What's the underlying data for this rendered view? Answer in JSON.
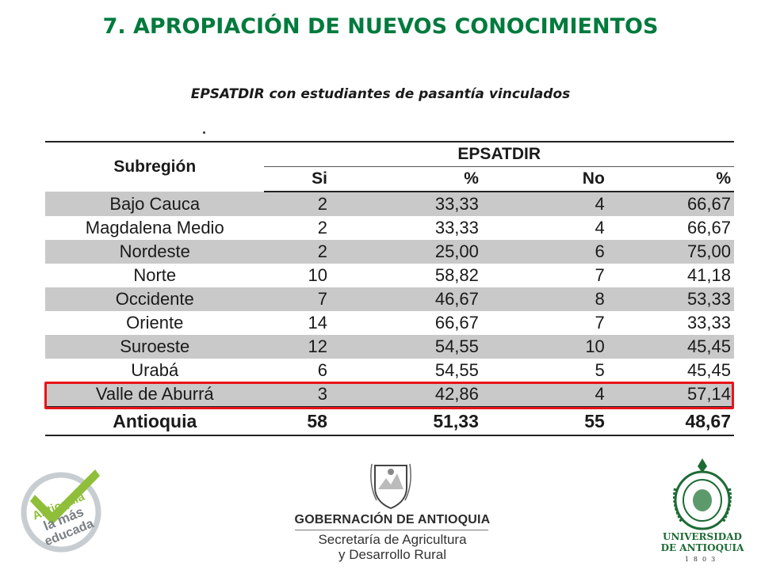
{
  "title": "7. APROPIACIÓN DE NUEVOS CONOCIMIENTOS",
  "subtitle": "EPSATDIR con estudiantes de pasantía vinculados",
  "table": {
    "row_header": "Subregión",
    "group_header": "EPSATDIR",
    "columns": [
      "Si",
      "%",
      "No",
      "%"
    ],
    "rows": [
      {
        "name": "Bajo Cauca",
        "si": "2",
        "pct_si": "33,33",
        "no": "4",
        "pct_no": "66,67"
      },
      {
        "name": "Magdalena Medio",
        "si": "2",
        "pct_si": "33,33",
        "no": "4",
        "pct_no": "66,67"
      },
      {
        "name": "Nordeste",
        "si": "2",
        "pct_si": "25,00",
        "no": "6",
        "pct_no": "75,00"
      },
      {
        "name": "Norte",
        "si": "10",
        "pct_si": "58,82",
        "no": "7",
        "pct_no": "41,18"
      },
      {
        "name": "Occidente",
        "si": "7",
        "pct_si": "46,67",
        "no": "8",
        "pct_no": "53,33"
      },
      {
        "name": "Oriente",
        "si": "14",
        "pct_si": "66,67",
        "no": "7",
        "pct_no": "33,33"
      },
      {
        "name": "Suroeste",
        "si": "12",
        "pct_si": "54,55",
        "no": "10",
        "pct_no": "45,45"
      },
      {
        "name": "Urabá",
        "si": "6",
        "pct_si": "54,55",
        "no": "5",
        "pct_no": "45,45"
      },
      {
        "name": "Valle de Aburrá",
        "si": "3",
        "pct_si": "42,86",
        "no": "4",
        "pct_no": "57,14"
      }
    ],
    "total": {
      "name": "Antioquia",
      "si": "58",
      "pct_si": "51,33",
      "no": "55",
      "pct_no": "48,67"
    },
    "highlighted_row": "Valle de Aburrá"
  },
  "logos": {
    "left": {
      "text": [
        "Antioquia",
        "la más",
        "educada"
      ],
      "color": "#8fbf3a"
    },
    "center": {
      "name": "GOBERNACIÓN DE ANTIOQUIA",
      "line1": "Secretaría de Agricultura",
      "line2": "y Desarrollo Rural"
    },
    "right": {
      "line1": "UNIVERSIDAD",
      "line2": "DE ANTIOQUIA",
      "year": "1803",
      "color": "#1d6b34"
    }
  },
  "colors": {
    "title": "#007a3d",
    "shade": "#c9c9c9",
    "highlight": "#e8141b"
  }
}
